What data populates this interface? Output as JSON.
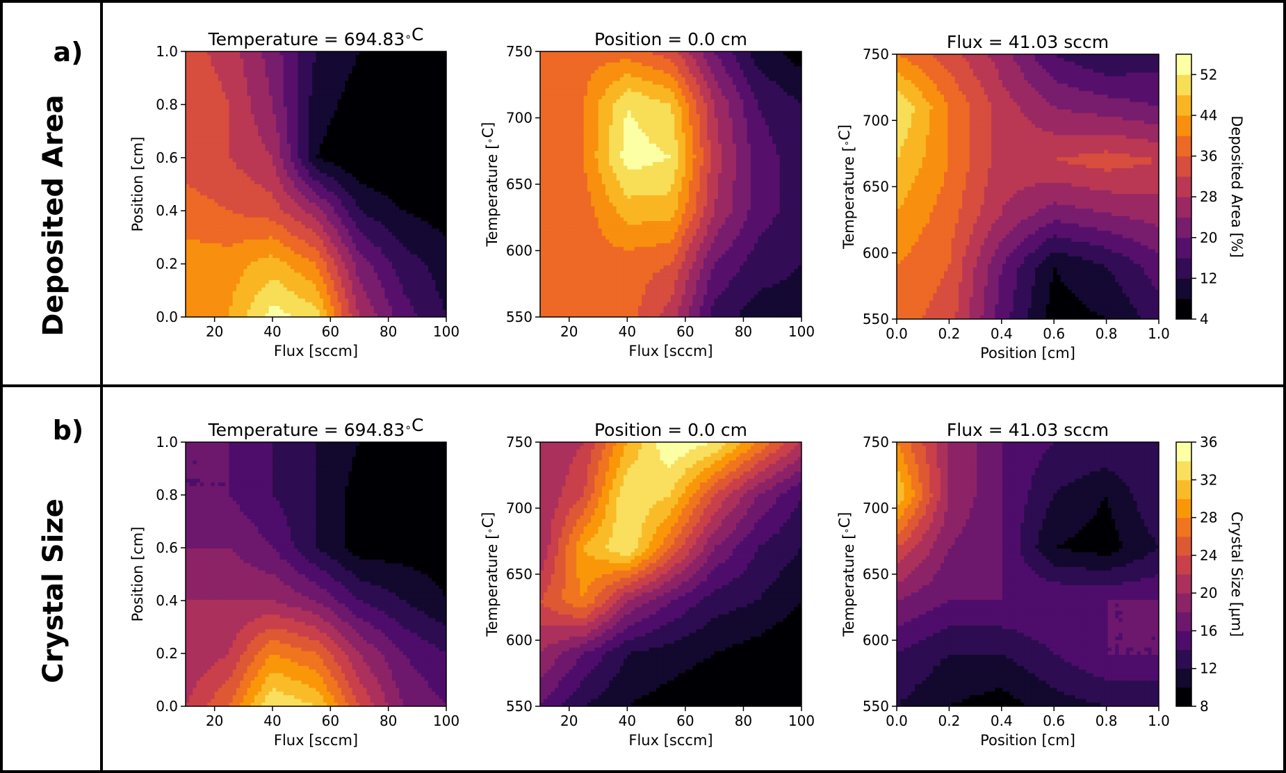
{
  "rows": [
    {
      "letter": "a)",
      "label": "Deposited Area",
      "colorbar_label": "Deposited Area [%]"
    },
    {
      "letter": "b)",
      "label": "Crystal Size",
      "colorbar_label": "Crystal Size [μm]"
    }
  ],
  "colormap": {
    "name": "inferno",
    "stops": [
      "#000004",
      "#1b0c41",
      "#4a0c6b",
      "#781c6d",
      "#a52c60",
      "#cf4446",
      "#ed6925",
      "#fb9b06",
      "#f7d13d",
      "#fcffa4"
    ]
  },
  "chart_data": [
    {
      "type": "heatmap",
      "row": 0,
      "col": 0,
      "title": "Temperature = 694.83$^\\circ$C",
      "xlabel": "Flux [sccm]",
      "ylabel": "Position [cm]",
      "xlim": [
        10,
        100
      ],
      "ylim": [
        0.0,
        1.0
      ],
      "xticks": [
        "20",
        "40",
        "60",
        "80",
        "100"
      ],
      "xtick_values": [
        20,
        40,
        60,
        80,
        100
      ],
      "yticks": [
        "0.0",
        "0.2",
        "0.4",
        "0.6",
        "0.8",
        "1.0"
      ],
      "ytick_values": [
        0.0,
        0.2,
        0.4,
        0.6,
        0.8,
        1.0
      ],
      "x": [
        10,
        25,
        40,
        55,
        70,
        85,
        100
      ],
      "y": [
        0.0,
        0.2,
        0.4,
        0.6,
        0.8,
        1.0
      ],
      "z": [
        [
          42,
          44,
          54,
          50,
          28,
          18,
          12
        ],
        [
          42,
          42,
          46,
          40,
          22,
          14,
          10
        ],
        [
          38,
          36,
          34,
          26,
          12,
          8,
          6
        ],
        [
          34,
          32,
          28,
          8,
          4,
          4,
          4
        ],
        [
          36,
          32,
          24,
          10,
          6,
          4,
          4
        ],
        [
          34,
          30,
          22,
          12,
          8,
          6,
          6
        ]
      ],
      "levels": [
        4,
        8,
        12,
        16,
        20,
        24,
        28,
        32,
        36,
        40,
        44,
        48,
        52,
        56
      ]
    },
    {
      "type": "heatmap",
      "row": 0,
      "col": 1,
      "title": "Position = 0.0 cm",
      "xlabel": "Flux [sccm]",
      "ylabel": "Temperature [$^\\circ$C]",
      "xlim": [
        10,
        100
      ],
      "ylim": [
        550,
        750
      ],
      "xticks": [
        "20",
        "40",
        "60",
        "80",
        "100"
      ],
      "xtick_values": [
        20,
        40,
        60,
        80,
        100
      ],
      "yticks": [
        "550",
        "600",
        "650",
        "700",
        "750"
      ],
      "ytick_values": [
        550,
        600,
        650,
        700,
        750
      ],
      "x": [
        10,
        25,
        40,
        55,
        70,
        85,
        100
      ],
      "y": [
        550,
        590,
        630,
        670,
        710,
        750
      ],
      "z": [
        [
          38,
          38,
          38,
          30,
          14,
          10,
          10
        ],
        [
          38,
          38,
          38,
          36,
          20,
          14,
          12
        ],
        [
          38,
          38,
          46,
          46,
          28,
          18,
          14
        ],
        [
          38,
          40,
          54,
          52,
          30,
          18,
          14
        ],
        [
          38,
          40,
          52,
          48,
          28,
          16,
          12
        ],
        [
          38,
          38,
          38,
          34,
          20,
          10,
          6
        ]
      ],
      "levels": [
        4,
        8,
        12,
        16,
        20,
        24,
        28,
        32,
        36,
        40,
        44,
        48,
        52,
        56
      ]
    },
    {
      "type": "heatmap",
      "row": 0,
      "col": 2,
      "title": "Flux = 41.03 sccm",
      "xlabel": "Position [cm]",
      "ylabel": "Temperature [$^\\circ$C]",
      "xlim": [
        0.0,
        1.0
      ],
      "ylim": [
        550,
        750
      ],
      "xticks": [
        "0.0",
        "0.2",
        "0.4",
        "0.6",
        "0.8",
        "1.0"
      ],
      "xtick_values": [
        0.0,
        0.2,
        0.4,
        0.6,
        0.8,
        1.0
      ],
      "yticks": [
        "550",
        "600",
        "650",
        "700",
        "750"
      ],
      "ytick_values": [
        550,
        600,
        650,
        700,
        750
      ],
      "x": [
        0.0,
        0.2,
        0.4,
        0.6,
        0.8,
        1.0
      ],
      "y": [
        550,
        590,
        630,
        670,
        710,
        750
      ],
      "z": [
        [
          38,
          34,
          18,
          6,
          8,
          14
        ],
        [
          40,
          36,
          20,
          8,
          12,
          18
        ],
        [
          44,
          38,
          28,
          22,
          24,
          26
        ],
        [
          48,
          40,
          30,
          32,
          34,
          32
        ],
        [
          52,
          40,
          30,
          24,
          22,
          20
        ],
        [
          40,
          34,
          26,
          16,
          12,
          14
        ]
      ],
      "levels": [
        4,
        8,
        12,
        16,
        20,
        24,
        28,
        32,
        36,
        40,
        44,
        48,
        52,
        56
      ]
    },
    {
      "type": "heatmap",
      "row": 1,
      "col": 0,
      "title": "Temperature = 694.83$^\\circ$C",
      "xlabel": "Flux [sccm]",
      "ylabel": "Position [cm]",
      "xlim": [
        10,
        100
      ],
      "ylim": [
        0.0,
        1.0
      ],
      "xticks": [
        "20",
        "40",
        "60",
        "80",
        "100"
      ],
      "xtick_values": [
        20,
        40,
        60,
        80,
        100
      ],
      "yticks": [
        "0.0",
        "0.2",
        "0.4",
        "0.6",
        "0.8",
        "1.0"
      ],
      "ytick_values": [
        0.0,
        0.2,
        0.4,
        0.6,
        0.8,
        1.0
      ],
      "x": [
        10,
        25,
        40,
        55,
        70,
        85,
        100
      ],
      "y": [
        0.0,
        0.2,
        0.4,
        0.6,
        0.8,
        1.0
      ],
      "z": [
        [
          22,
          26,
          34,
          32,
          24,
          18,
          16
        ],
        [
          20,
          22,
          28,
          26,
          20,
          16,
          14
        ],
        [
          20,
          20,
          20,
          18,
          14,
          12,
          10
        ],
        [
          18,
          18,
          16,
          12,
          9,
          9,
          9
        ],
        [
          16,
          16,
          14,
          12,
          9,
          8,
          8
        ],
        [
          16,
          16,
          14,
          12,
          10,
          9,
          9
        ]
      ],
      "levels": [
        8,
        10,
        12,
        14,
        16,
        18,
        20,
        22,
        24,
        26,
        28,
        30,
        32,
        34,
        36
      ]
    },
    {
      "type": "heatmap",
      "row": 1,
      "col": 1,
      "title": "Position = 0.0 cm",
      "xlabel": "Flux [sccm]",
      "ylabel": "Temperature [$^\\circ$C]",
      "xlim": [
        10,
        100
      ],
      "ylim": [
        550,
        750
      ],
      "xticks": [
        "20",
        "40",
        "60",
        "80",
        "100"
      ],
      "xtick_values": [
        20,
        40,
        60,
        80,
        100
      ],
      "yticks": [
        "550",
        "600",
        "650",
        "700",
        "750"
      ],
      "ytick_values": [
        550,
        600,
        650,
        700,
        750
      ],
      "x": [
        10,
        25,
        40,
        55,
        70,
        85,
        100
      ],
      "y": [
        550,
        590,
        630,
        670,
        710,
        750
      ],
      "z": [
        [
          16,
          12,
          10,
          9,
          8,
          8,
          8
        ],
        [
          20,
          16,
          12,
          11,
          10,
          9,
          8
        ],
        [
          24,
          28,
          20,
          16,
          13,
          12,
          10
        ],
        [
          20,
          30,
          34,
          26,
          18,
          14,
          12
        ],
        [
          20,
          24,
          34,
          32,
          24,
          18,
          14
        ],
        [
          20,
          22,
          30,
          36,
          34,
          28,
          22
        ]
      ],
      "levels": [
        8,
        10,
        12,
        14,
        16,
        18,
        20,
        22,
        24,
        26,
        28,
        30,
        32,
        34,
        36
      ]
    },
    {
      "type": "heatmap",
      "row": 1,
      "col": 2,
      "title": "Flux = 41.03 sccm",
      "xlabel": "Position [cm]",
      "ylabel": "Temperature [$^\\circ$C]",
      "xlim": [
        0.0,
        1.0
      ],
      "ylim": [
        550,
        750
      ],
      "xticks": [
        "0.0",
        "0.2",
        "0.4",
        "0.6",
        "0.8",
        "1.0"
      ],
      "xtick_values": [
        0.0,
        0.2,
        0.4,
        0.6,
        0.8,
        1.0
      ],
      "yticks": [
        "550",
        "600",
        "650",
        "700",
        "750"
      ],
      "ytick_values": [
        550,
        600,
        650,
        700,
        750
      ],
      "x": [
        0.0,
        0.2,
        0.4,
        0.6,
        0.8,
        1.0
      ],
      "y": [
        550,
        590,
        630,
        670,
        710,
        750
      ],
      "z": [
        [
          12,
          10,
          9,
          11,
          12,
          12
        ],
        [
          14,
          12,
          12,
          14,
          16,
          16
        ],
        [
          18,
          16,
          16,
          16,
          16,
          16
        ],
        [
          24,
          18,
          16,
          10,
          9,
          12
        ],
        [
          32,
          20,
          16,
          12,
          10,
          14
        ],
        [
          28,
          20,
          16,
          14,
          14,
          14
        ]
      ],
      "levels": [
        8,
        10,
        12,
        14,
        16,
        18,
        20,
        22,
        24,
        26,
        28,
        30,
        32,
        34,
        36
      ]
    }
  ],
  "colorbars": [
    {
      "row": 0,
      "range": [
        4,
        56
      ],
      "ticks": [
        "4",
        "12",
        "20",
        "28",
        "36",
        "44",
        "52"
      ],
      "tick_values": [
        4,
        12,
        20,
        28,
        36,
        44,
        52
      ],
      "levels": [
        4,
        8,
        12,
        16,
        20,
        24,
        28,
        32,
        36,
        40,
        44,
        48,
        52,
        56
      ]
    },
    {
      "row": 1,
      "range": [
        8,
        36
      ],
      "ticks": [
        "8",
        "12",
        "16",
        "20",
        "24",
        "28",
        "32",
        "36"
      ],
      "tick_values": [
        8,
        12,
        16,
        20,
        24,
        28,
        32,
        36
      ],
      "levels": [
        8,
        10,
        12,
        14,
        16,
        18,
        20,
        22,
        24,
        26,
        28,
        30,
        32,
        34,
        36
      ]
    }
  ]
}
